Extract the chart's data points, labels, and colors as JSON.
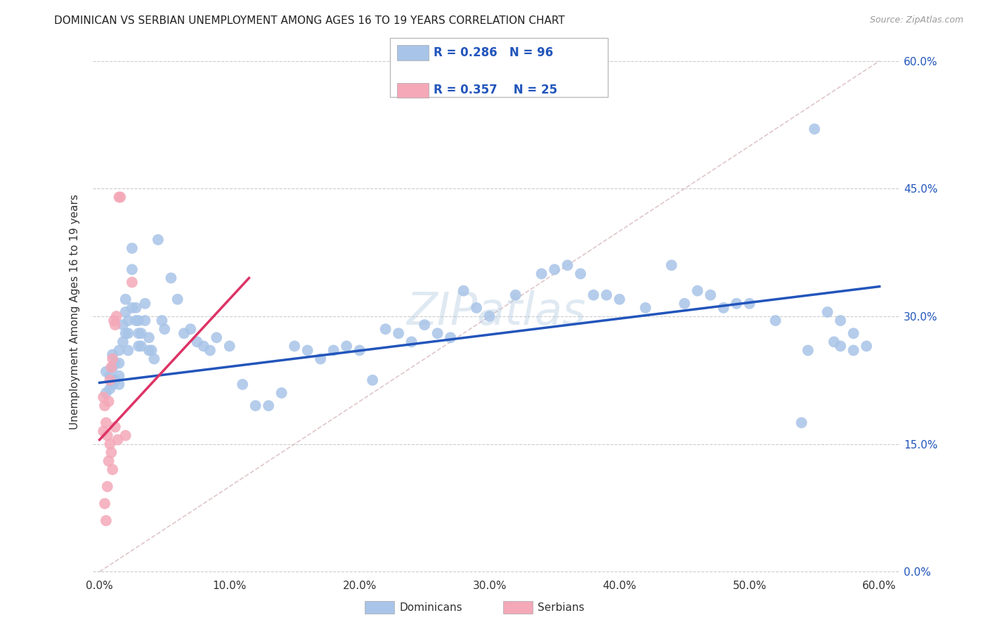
{
  "title": "DOMINICAN VS SERBIAN UNEMPLOYMENT AMONG AGES 16 TO 19 YEARS CORRELATION CHART",
  "source": "Source: ZipAtlas.com",
  "xlabel_ticks": [
    "0.0%",
    "10.0%",
    "20.0%",
    "30.0%",
    "40.0%",
    "50.0%",
    "60.0%"
  ],
  "ylabel_ticks": [
    "0.0%",
    "15.0%",
    "30.0%",
    "45.0%",
    "60.0%"
  ],
  "xlabel_vals": [
    0.0,
    0.1,
    0.2,
    0.3,
    0.4,
    0.5,
    0.6
  ],
  "ylabel_vals": [
    0.0,
    0.15,
    0.3,
    0.45,
    0.6
  ],
  "xlim": [
    -0.005,
    0.615
  ],
  "ylim": [
    -0.005,
    0.615
  ],
  "dominican_color": "#a8c4e8",
  "serbian_color": "#f4a8b8",
  "dominican_line_color": "#2255bb",
  "serbian_line_color": "#dd3366",
  "diagonal_color": "#d8b8bc",
  "r_dominican": 0.286,
  "n_dominican": 96,
  "r_serbian": 0.357,
  "n_serbian": 25,
  "ylabel_label": "Unemployment Among Ages 16 to 19 years",
  "legend_label_dominican": "Dominicans",
  "legend_label_serbian": "Serbians",
  "watermark": "ZIPatlas",
  "dominican_x": [
    0.005,
    0.005,
    0.008,
    0.008,
    0.01,
    0.01,
    0.01,
    0.012,
    0.012,
    0.015,
    0.015,
    0.015,
    0.015,
    0.018,
    0.018,
    0.02,
    0.02,
    0.02,
    0.022,
    0.022,
    0.022,
    0.025,
    0.025,
    0.025,
    0.028,
    0.028,
    0.03,
    0.03,
    0.03,
    0.032,
    0.032,
    0.035,
    0.035,
    0.038,
    0.038,
    0.04,
    0.042,
    0.045,
    0.048,
    0.05,
    0.055,
    0.06,
    0.065,
    0.07,
    0.075,
    0.08,
    0.085,
    0.09,
    0.1,
    0.11,
    0.12,
    0.13,
    0.14,
    0.15,
    0.16,
    0.17,
    0.18,
    0.19,
    0.2,
    0.21,
    0.22,
    0.23,
    0.24,
    0.25,
    0.26,
    0.27,
    0.28,
    0.29,
    0.3,
    0.32,
    0.34,
    0.35,
    0.36,
    0.37,
    0.38,
    0.39,
    0.4,
    0.42,
    0.44,
    0.45,
    0.46,
    0.47,
    0.48,
    0.49,
    0.5,
    0.52,
    0.54,
    0.55,
    0.56,
    0.57,
    0.58,
    0.59,
    0.57,
    0.58,
    0.545,
    0.565
  ],
  "dominican_y": [
    0.235,
    0.21,
    0.23,
    0.215,
    0.255,
    0.24,
    0.22,
    0.245,
    0.225,
    0.26,
    0.245,
    0.23,
    0.22,
    0.29,
    0.27,
    0.32,
    0.305,
    0.28,
    0.295,
    0.28,
    0.26,
    0.38,
    0.355,
    0.31,
    0.31,
    0.295,
    0.295,
    0.28,
    0.265,
    0.28,
    0.265,
    0.315,
    0.295,
    0.275,
    0.26,
    0.26,
    0.25,
    0.39,
    0.295,
    0.285,
    0.345,
    0.32,
    0.28,
    0.285,
    0.27,
    0.265,
    0.26,
    0.275,
    0.265,
    0.22,
    0.195,
    0.195,
    0.21,
    0.265,
    0.26,
    0.25,
    0.26,
    0.265,
    0.26,
    0.225,
    0.285,
    0.28,
    0.27,
    0.29,
    0.28,
    0.275,
    0.33,
    0.31,
    0.3,
    0.325,
    0.35,
    0.355,
    0.36,
    0.35,
    0.325,
    0.325,
    0.32,
    0.31,
    0.36,
    0.315,
    0.33,
    0.325,
    0.31,
    0.315,
    0.315,
    0.295,
    0.175,
    0.52,
    0.305,
    0.295,
    0.28,
    0.265,
    0.265,
    0.26,
    0.26,
    0.27
  ],
  "serbian_x": [
    0.003,
    0.003,
    0.004,
    0.004,
    0.005,
    0.005,
    0.006,
    0.006,
    0.007,
    0.007,
    0.008,
    0.008,
    0.009,
    0.009,
    0.01,
    0.01,
    0.011,
    0.012,
    0.012,
    0.013,
    0.014,
    0.015,
    0.016,
    0.02,
    0.025
  ],
  "serbian_y": [
    0.205,
    0.165,
    0.195,
    0.08,
    0.175,
    0.06,
    0.16,
    0.1,
    0.2,
    0.13,
    0.225,
    0.15,
    0.24,
    0.14,
    0.25,
    0.12,
    0.295,
    0.29,
    0.17,
    0.3,
    0.155,
    0.44,
    0.44,
    0.16,
    0.34
  ],
  "dom_trend_x0": 0.0,
  "dom_trend_x1": 0.6,
  "dom_trend_y0": 0.222,
  "dom_trend_y1": 0.335,
  "serb_trend_x0": 0.0,
  "serb_trend_x1": 0.115,
  "serb_trend_y0": 0.155,
  "serb_trend_y1": 0.345
}
